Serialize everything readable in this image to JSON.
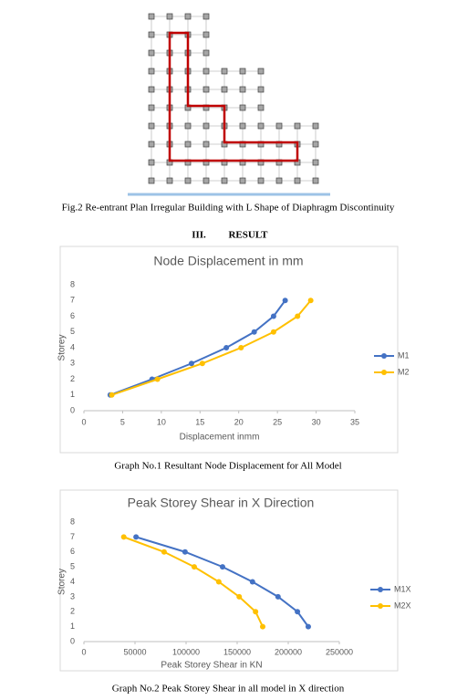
{
  "figure": {
    "caption": "Fig.2 Re-entrant Plan Irregular Building with L Shape of Diaphragm Discontinuity"
  },
  "section": {
    "number": "III.",
    "title": "RESULT"
  },
  "chart_data": [
    {
      "type": "line",
      "title": "Node Displacement in mm",
      "xlabel": "Displacement inmm",
      "ylabel": "Storey",
      "caption": "Graph No.1 Resultant Node Displacement for All Model",
      "xlim": [
        0,
        35
      ],
      "xticks": [
        0,
        5,
        10,
        15,
        20,
        25,
        30,
        35
      ],
      "ylim": [
        0,
        8
      ],
      "yticks": [
        0,
        1,
        2,
        3,
        4,
        5,
        6,
        7,
        8
      ],
      "legend": "right",
      "grid": false,
      "series": [
        {
          "name": "M1",
          "color": "#4472c4",
          "x": [
            3.4,
            8.8,
            13.9,
            18.4,
            22.0,
            24.5,
            26.0
          ],
          "values": [
            1,
            2,
            3,
            4,
            5,
            6,
            7
          ]
        },
        {
          "name": "M2",
          "color": "#ffc000",
          "x": [
            3.6,
            9.5,
            15.3,
            20.3,
            24.5,
            27.6,
            29.3
          ],
          "values": [
            1,
            2,
            3,
            4,
            5,
            6,
            7
          ]
        }
      ]
    },
    {
      "type": "line",
      "title": "Peak Storey Shear in X Direction",
      "xlabel": "Peak Storey Shear in KN",
      "ylabel": "Storey",
      "caption": "Graph No.2 Peak Storey Shear in all model in X direction",
      "xlim": [
        0,
        250000
      ],
      "xticks": [
        0,
        50000,
        100000,
        150000,
        200000,
        250000
      ],
      "ylim": [
        0,
        8
      ],
      "yticks": [
        0,
        1,
        2,
        3,
        4,
        5,
        6,
        7,
        8
      ],
      "legend": "right",
      "grid": false,
      "series": [
        {
          "name": "M1X",
          "color": "#4472c4",
          "x": [
            51000,
            99000,
            135700,
            165000,
            190000,
            209000,
            219600
          ],
          "values": [
            7,
            6,
            5,
            4,
            3,
            2,
            1
          ]
        },
        {
          "name": "M2X",
          "color": "#ffc000",
          "x": [
            39000,
            78500,
            108000,
            132000,
            152000,
            168000,
            175000
          ],
          "values": [
            7,
            6,
            5,
            4,
            3,
            2,
            1
          ]
        }
      ]
    }
  ]
}
